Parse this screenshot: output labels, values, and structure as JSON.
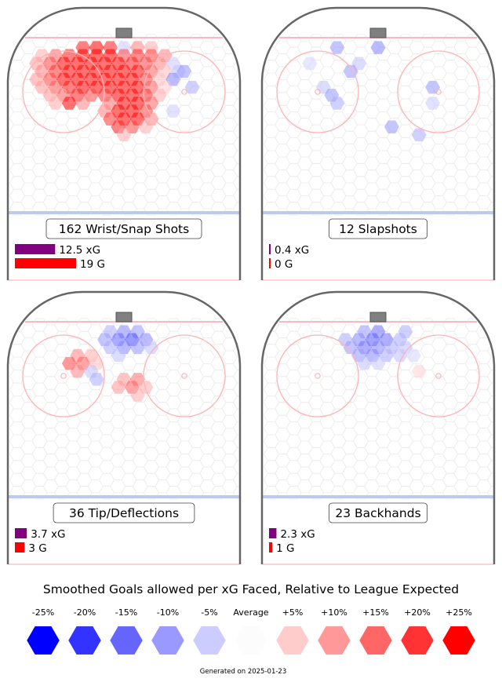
{
  "chart_data": [
    {
      "type": "heatmap",
      "title": "162 Wrist/Snap Shots",
      "legend": [
        {
          "label": "12.5 xG",
          "value": 12.5,
          "color": "#800080"
        },
        {
          "label": "19 G",
          "value": 19,
          "color": "#ff0000"
        }
      ],
      "cells": [
        {
          "x": -15,
          "y": 84,
          "v": 0.22
        },
        {
          "x": -10,
          "y": 84,
          "v": 0.25
        },
        {
          "x": -5,
          "y": 84,
          "v": 0.22
        },
        {
          "x": 0,
          "y": 84,
          "v": -0.05
        },
        {
          "x": 5,
          "y": 84,
          "v": 0.12
        },
        {
          "x": 10,
          "y": 84,
          "v": 0.08
        },
        {
          "x": -30,
          "y": 80,
          "v": 0.08
        },
        {
          "x": -25,
          "y": 80,
          "v": 0.15
        },
        {
          "x": -20,
          "y": 80,
          "v": 0.22
        },
        {
          "x": -15,
          "y": 80,
          "v": 0.28
        },
        {
          "x": -10,
          "y": 80,
          "v": 0.3
        },
        {
          "x": -5,
          "y": 80,
          "v": 0.28
        },
        {
          "x": 0,
          "y": 80,
          "v": 0.18
        },
        {
          "x": 5,
          "y": 80,
          "v": 0.2
        },
        {
          "x": 10,
          "y": 80,
          "v": 0.18
        },
        {
          "x": 15,
          "y": 80,
          "v": 0.12
        },
        {
          "x": -32,
          "y": 76,
          "v": 0.1
        },
        {
          "x": -27,
          "y": 76,
          "v": 0.18
        },
        {
          "x": -22,
          "y": 76,
          "v": 0.25
        },
        {
          "x": -17,
          "y": 76,
          "v": 0.32
        },
        {
          "x": -12,
          "y": 76,
          "v": 0.35
        },
        {
          "x": -7,
          "y": 76,
          "v": 0.33
        },
        {
          "x": -2,
          "y": 76,
          "v": 0.28
        },
        {
          "x": 3,
          "y": 76,
          "v": 0.22
        },
        {
          "x": 8,
          "y": 76,
          "v": 0.18
        },
        {
          "x": 13,
          "y": 76,
          "v": 0.12
        },
        {
          "x": 18,
          "y": 76,
          "v": -0.05
        },
        {
          "x": -30,
          "y": 72,
          "v": 0.12
        },
        {
          "x": -25,
          "y": 72,
          "v": 0.2
        },
        {
          "x": -20,
          "y": 72,
          "v": 0.28
        },
        {
          "x": -15,
          "y": 72,
          "v": 0.35
        },
        {
          "x": -10,
          "y": 72,
          "v": 0.38
        },
        {
          "x": -5,
          "y": 72,
          "v": 0.36
        },
        {
          "x": 0,
          "y": 72,
          "v": 0.32
        },
        {
          "x": 5,
          "y": 72,
          "v": 0.24
        },
        {
          "x": 10,
          "y": 72,
          "v": 0.15
        },
        {
          "x": 15,
          "y": 72,
          "v": 0.06
        },
        {
          "x": 20,
          "y": 72,
          "v": -0.06
        },
        {
          "x": -32,
          "y": 68,
          "v": 0.1
        },
        {
          "x": -27,
          "y": 68,
          "v": 0.18
        },
        {
          "x": -22,
          "y": 68,
          "v": 0.25
        },
        {
          "x": -17,
          "y": 68,
          "v": 0.3
        },
        {
          "x": -12,
          "y": 68,
          "v": 0.34
        },
        {
          "x": -7,
          "y": 68,
          "v": 0.36
        },
        {
          "x": -2,
          "y": 68,
          "v": 0.34
        },
        {
          "x": 3,
          "y": 68,
          "v": 0.28
        },
        {
          "x": 8,
          "y": 68,
          "v": 0.18
        },
        {
          "x": 13,
          "y": 68,
          "v": 0.06
        },
        {
          "x": 18,
          "y": 68,
          "v": -0.12
        },
        {
          "x": -30,
          "y": 64,
          "v": 0.1
        },
        {
          "x": -25,
          "y": 64,
          "v": 0.16
        },
        {
          "x": -20,
          "y": 64,
          "v": 0.22
        },
        {
          "x": -15,
          "y": 64,
          "v": 0.26
        },
        {
          "x": -10,
          "y": 64,
          "v": 0.28
        },
        {
          "x": -5,
          "y": 64,
          "v": 0.3
        },
        {
          "x": 0,
          "y": 64,
          "v": 0.32
        },
        {
          "x": 5,
          "y": 64,
          "v": 0.28
        },
        {
          "x": 10,
          "y": 64,
          "v": 0.15
        },
        {
          "x": 15,
          "y": 64,
          "v": 0.05
        },
        {
          "x": -27,
          "y": 60,
          "v": 0.1
        },
        {
          "x": -22,
          "y": 60,
          "v": 0.16
        },
        {
          "x": -17,
          "y": 60,
          "v": 0.22
        },
        {
          "x": -12,
          "y": 60,
          "v": 0.18
        },
        {
          "x": -7,
          "y": 60,
          "v": 0.2
        },
        {
          "x": -2,
          "y": 60,
          "v": 0.26
        },
        {
          "x": 3,
          "y": 60,
          "v": 0.3
        },
        {
          "x": 8,
          "y": 60,
          "v": 0.2
        },
        {
          "x": 13,
          "y": 60,
          "v": 0.08
        },
        {
          "x": -25,
          "y": 56,
          "v": 0.08
        },
        {
          "x": -20,
          "y": 56,
          "v": 0.26
        },
        {
          "x": -15,
          "y": 56,
          "v": 0.12
        },
        {
          "x": -5,
          "y": 56,
          "v": 0.14
        },
        {
          "x": 0,
          "y": 56,
          "v": 0.25
        },
        {
          "x": 5,
          "y": 56,
          "v": 0.3
        },
        {
          "x": 10,
          "y": 56,
          "v": 0.15
        },
        {
          "x": -7,
          "y": 52,
          "v": 0.12
        },
        {
          "x": -2,
          "y": 52,
          "v": 0.26
        },
        {
          "x": 3,
          "y": 52,
          "v": 0.32
        },
        {
          "x": 8,
          "y": 52,
          "v": 0.18
        },
        {
          "x": 18,
          "y": 52,
          "v": -0.05
        },
        {
          "x": -5,
          "y": 48,
          "v": 0.2
        },
        {
          "x": 0,
          "y": 48,
          "v": 0.3
        },
        {
          "x": 5,
          "y": 48,
          "v": 0.25
        },
        {
          "x": 10,
          "y": 48,
          "v": 0.12
        },
        {
          "x": -2,
          "y": 44,
          "v": 0.22
        },
        {
          "x": 3,
          "y": 44,
          "v": 0.18
        },
        {
          "x": 8,
          "y": 44,
          "v": 0.08
        },
        {
          "x": 0,
          "y": 40,
          "v": 0.08
        },
        {
          "x": 22,
          "y": 72,
          "v": -0.1
        },
        {
          "x": 25,
          "y": 64,
          "v": -0.08
        }
      ]
    },
    {
      "type": "heatmap",
      "title": "12 Slapshots",
      "legend": [
        {
          "label": "0.4 xG",
          "value": 0.4,
          "color": "#800080"
        },
        {
          "label": "0 G",
          "value": 0,
          "color": "#ff0000"
        }
      ],
      "cells": [
        {
          "x": -15,
          "y": 84,
          "v": -0.1
        },
        {
          "x": 0,
          "y": 84,
          "v": -0.12
        },
        {
          "x": -7,
          "y": 76,
          "v": -0.06
        },
        {
          "x": -10,
          "y": 72,
          "v": -0.1
        },
        {
          "x": -20,
          "y": 64,
          "v": -0.06
        },
        {
          "x": -17,
          "y": 60,
          "v": -0.1
        },
        {
          "x": -15,
          "y": 56,
          "v": -0.08
        },
        {
          "x": 20,
          "y": 64,
          "v": -0.1
        },
        {
          "x": 20,
          "y": 56,
          "v": -0.05
        },
        {
          "x": 5,
          "y": 44,
          "v": -0.1
        },
        {
          "x": 15,
          "y": 40,
          "v": -0.08
        },
        {
          "x": -25,
          "y": 76,
          "v": -0.04
        }
      ]
    },
    {
      "type": "heatmap",
      "title": "36 Tip/Deflections",
      "legend": [
        {
          "label": "3.7 xG",
          "value": 3.7,
          "color": "#800080"
        },
        {
          "label": "3 G",
          "value": 3,
          "color": "#ff0000"
        }
      ],
      "cells": [
        {
          "x": -5,
          "y": 84,
          "v": -0.08
        },
        {
          "x": 0,
          "y": 84,
          "v": -0.12
        },
        {
          "x": 5,
          "y": 84,
          "v": -0.1
        },
        {
          "x": -7,
          "y": 80,
          "v": -0.1
        },
        {
          "x": -2,
          "y": 80,
          "v": -0.15
        },
        {
          "x": 3,
          "y": 80,
          "v": -0.18
        },
        {
          "x": 8,
          "y": 80,
          "v": -0.12
        },
        {
          "x": -5,
          "y": 76,
          "v": -0.08
        },
        {
          "x": 0,
          "y": 76,
          "v": -0.12
        },
        {
          "x": 5,
          "y": 76,
          "v": -0.1
        },
        {
          "x": 10,
          "y": 76,
          "v": -0.06
        },
        {
          "x": -17,
          "y": 72,
          "v": 0.12
        },
        {
          "x": -12,
          "y": 72,
          "v": 0.08
        },
        {
          "x": -2,
          "y": 72,
          "v": -0.06
        },
        {
          "x": -20,
          "y": 68,
          "v": 0.18
        },
        {
          "x": -15,
          "y": 68,
          "v": 0.16
        },
        {
          "x": -10,
          "y": 68,
          "v": 0.06
        },
        {
          "x": -17,
          "y": 64,
          "v": 0.12
        },
        {
          "x": -12,
          "y": 64,
          "v": -0.06
        },
        {
          "x": -10,
          "y": 60,
          "v": -0.08
        },
        {
          "x": 0,
          "y": 60,
          "v": 0.1
        },
        {
          "x": 5,
          "y": 60,
          "v": 0.14
        },
        {
          "x": 3,
          "y": 56,
          "v": 0.16
        },
        {
          "x": -2,
          "y": 56,
          "v": 0.1
        },
        {
          "x": 8,
          "y": 56,
          "v": 0.08
        },
        {
          "x": 5,
          "y": 52,
          "v": 0.08
        }
      ]
    },
    {
      "type": "heatmap",
      "title": "23 Backhands",
      "legend": [
        {
          "label": "2.3 xG",
          "value": 2.3,
          "color": "#800080"
        },
        {
          "label": "1 G",
          "value": 1,
          "color": "#ff0000"
        }
      ],
      "cells": [
        {
          "x": -5,
          "y": 84,
          "v": -0.1
        },
        {
          "x": 0,
          "y": 84,
          "v": -0.14
        },
        {
          "x": 10,
          "y": 84,
          "v": -0.08
        },
        {
          "x": -12,
          "y": 80,
          "v": -0.08
        },
        {
          "x": -7,
          "y": 80,
          "v": -0.12
        },
        {
          "x": -2,
          "y": 80,
          "v": -0.16
        },
        {
          "x": 3,
          "y": 80,
          "v": -0.14
        },
        {
          "x": 8,
          "y": 80,
          "v": -0.08
        },
        {
          "x": -10,
          "y": 76,
          "v": -0.1
        },
        {
          "x": -5,
          "y": 76,
          "v": -0.14
        },
        {
          "x": 0,
          "y": 76,
          "v": -0.12
        },
        {
          "x": 5,
          "y": 76,
          "v": -0.08
        },
        {
          "x": 10,
          "y": 76,
          "v": -0.06
        },
        {
          "x": -7,
          "y": 72,
          "v": -0.1
        },
        {
          "x": -2,
          "y": 72,
          "v": -0.12
        },
        {
          "x": 3,
          "y": 72,
          "v": -0.08
        },
        {
          "x": 8,
          "y": 72,
          "v": -0.06
        },
        {
          "x": 13,
          "y": 72,
          "v": -0.04
        },
        {
          "x": -5,
          "y": 68,
          "v": -0.06
        },
        {
          "x": 0,
          "y": 68,
          "v": -0.05
        },
        {
          "x": 15,
          "y": 64,
          "v": 0.04
        }
      ]
    }
  ],
  "legend": {
    "title": "Smoothed Goals allowed per xG Faced, Relative to League Expected",
    "items": [
      {
        "label": "-25%",
        "color": "#0000ff"
      },
      {
        "label": "-20%",
        "color": "#3333ff"
      },
      {
        "label": "-15%",
        "color": "#6666ff"
      },
      {
        "label": "-10%",
        "color": "#9999ff"
      },
      {
        "label": "-5%",
        "color": "#ccccff"
      },
      {
        "label": "Average",
        "color": "#fcfcfc"
      },
      {
        "label": "+5%",
        "color": "#ffcccc"
      },
      {
        "label": "+10%",
        "color": "#ff9999"
      },
      {
        "label": "+15%",
        "color": "#ff6666"
      },
      {
        "label": "+20%",
        "color": "#ff3333"
      },
      {
        "label": "+25%",
        "color": "#ff0000"
      }
    ]
  },
  "footer": "Generated on 2025-01-23",
  "colors": {
    "board": "#666666",
    "goal_line": "#ffb6c1",
    "blue_line": "#bccaf0",
    "faceoff_circle": "#ffb3b3",
    "net": "#808080",
    "xg_bar": "#800080",
    "goal_bar": "#ff0000",
    "hex_outline": "#ececec"
  }
}
